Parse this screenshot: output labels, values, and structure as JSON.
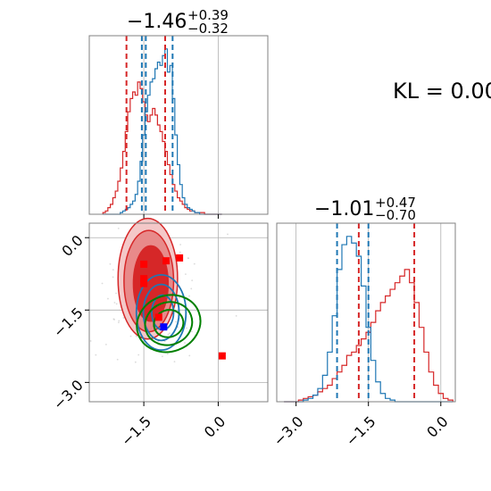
{
  "colors": {
    "red": "#d62728",
    "blue": "#1f77b4",
    "green": "#008000",
    "marker_red": "#ff0000",
    "marker_blue": "#0000ff",
    "grid": "#b0b0b0"
  },
  "annotation": "KL = 0.00",
  "chart_data": [
    {
      "type": "area",
      "panel": "marginal-param-1",
      "title": "−1.46",
      "title_sup": "+0.39",
      "title_sub": "−0.32",
      "xlim": [
        -2.6,
        1.0
      ],
      "x_ticks": [
        -1.5,
        0.0
      ],
      "x_tick_labels": [],
      "y_ticks": [],
      "grid": true,
      "dashed_lines": {
        "red": [
          -1.85,
          -1.07
        ],
        "blue": [
          -1.54,
          -1.46,
          -0.92
        ]
      },
      "hist_bins_x": [
        -2.3,
        -2.25,
        -2.2,
        -2.15,
        -2.1,
        -2.05,
        -2.0,
        -1.95,
        -1.9,
        -1.85,
        -1.8,
        -1.75,
        -1.7,
        -1.65,
        -1.6,
        -1.55,
        -1.5,
        -1.45,
        -1.4,
        -1.35,
        -1.3,
        -1.25,
        -1.2,
        -1.15,
        -1.1,
        -1.05,
        -1.0,
        -0.95,
        -0.9,
        -0.85,
        -0.8,
        -0.75,
        -0.7,
        -0.65,
        -0.6,
        -0.55,
        -0.5,
        -0.45,
        -0.4,
        -0.35,
        -0.3,
        -0.25,
        -0.2,
        -0.15,
        -0.1,
        -0.05,
        0.0,
        0.05
      ],
      "series": [
        {
          "color": "red",
          "values": [
            0.01,
            0.02,
            0.04,
            0.06,
            0.1,
            0.14,
            0.2,
            0.28,
            0.38,
            0.5,
            0.62,
            0.7,
            0.74,
            0.72,
            0.8,
            0.76,
            0.68,
            0.6,
            0.56,
            0.6,
            0.64,
            0.6,
            0.54,
            0.5,
            0.44,
            0.38,
            0.3,
            0.24,
            0.18,
            0.14,
            0.1,
            0.08,
            0.06,
            0.04,
            0.03,
            0.02,
            0.02,
            0.01,
            0.01,
            0.01,
            0.01,
            0.0,
            0.0,
            0.0,
            0.0,
            0.0,
            0.0,
            0.0
          ]
        },
        {
          "color": "blue",
          "values": [
            0.0,
            0.0,
            0.0,
            0.0,
            0.0,
            0.0,
            0.0,
            0.01,
            0.02,
            0.03,
            0.04,
            0.06,
            0.08,
            0.12,
            0.2,
            0.32,
            0.48,
            0.62,
            0.72,
            0.8,
            0.82,
            0.88,
            0.92,
            0.9,
            0.96,
            1.0,
            0.86,
            0.9,
            0.7,
            0.48,
            0.3,
            0.18,
            0.1,
            0.06,
            0.04,
            0.03,
            0.02,
            0.01,
            0.01,
            0.0,
            0.0,
            0.0,
            0.0,
            0.0,
            0.0,
            0.0,
            0.0,
            0.0
          ]
        }
      ]
    },
    {
      "type": "area",
      "panel": "marginal-param-2",
      "title": "−1.01",
      "title_sup": "+0.47",
      "title_sub": "−0.70",
      "xlim": [
        -3.4,
        0.3
      ],
      "x_ticks": [
        -3.0,
        -1.5,
        0.0
      ],
      "x_tick_labels": [
        "−3.0",
        "−1.5",
        "0.0"
      ],
      "grid": true,
      "dashed_lines": {
        "red": [
          -1.7,
          -0.55
        ],
        "blue": [
          -2.15,
          -1.5
        ]
      },
      "hist_bins_x": [
        -3.2,
        -3.1,
        -3.0,
        -2.9,
        -2.8,
        -2.7,
        -2.6,
        -2.5,
        -2.4,
        -2.3,
        -2.2,
        -2.1,
        -2.0,
        -1.9,
        -1.8,
        -1.7,
        -1.6,
        -1.5,
        -1.4,
        -1.3,
        -1.2,
        -1.1,
        -1.0,
        -0.9,
        -0.8,
        -0.7,
        -0.6,
        -0.5,
        -0.4,
        -0.3,
        -0.2,
        -0.1,
        0.0,
        0.1,
        0.2
      ],
      "series": [
        {
          "color": "red",
          "values": [
            0.0,
            0.0,
            0.0,
            0.01,
            0.02,
            0.03,
            0.04,
            0.06,
            0.08,
            0.1,
            0.14,
            0.18,
            0.22,
            0.28,
            0.3,
            0.34,
            0.38,
            0.42,
            0.48,
            0.55,
            0.6,
            0.64,
            0.68,
            0.72,
            0.76,
            0.8,
            0.72,
            0.6,
            0.45,
            0.3,
            0.18,
            0.1,
            0.05,
            0.02,
            0.01
          ]
        },
        {
          "color": "blue",
          "values": [
            0.0,
            0.0,
            0.0,
            0.0,
            0.01,
            0.02,
            0.04,
            0.08,
            0.16,
            0.3,
            0.52,
            0.8,
            0.95,
            1.0,
            0.96,
            0.88,
            0.7,
            0.45,
            0.25,
            0.12,
            0.05,
            0.02,
            0.01,
            0.0,
            0.0,
            0.0,
            0.0,
            0.0,
            0.0,
            0.0,
            0.0,
            0.0,
            0.0,
            0.0,
            0.0
          ]
        }
      ]
    },
    {
      "type": "scatter",
      "panel": "joint",
      "xlim": [
        -2.6,
        1.0
      ],
      "ylim": [
        -3.4,
        0.3
      ],
      "x_ticks": [
        -1.5,
        0.0
      ],
      "x_tick_labels": [
        "−1.5",
        "0.0"
      ],
      "y_ticks": [
        0.0,
        -1.5,
        -3.0
      ],
      "y_tick_labels": [
        "0.0",
        "−1.5",
        "−3.0"
      ],
      "grid": true,
      "red_contours": [
        {
          "cx": -1.42,
          "cy": -0.85,
          "rx": 0.6,
          "ry": 1.25,
          "fill": "#f4c8c8",
          "stroke": "#d62728"
        },
        {
          "cx": -1.4,
          "cy": -0.9,
          "rx": 0.5,
          "ry": 1.05,
          "fill": "#e88a8a",
          "stroke": "#d62728"
        },
        {
          "cx": -1.36,
          "cy": -0.95,
          "rx": 0.35,
          "ry": 0.78,
          "fill": "#d62728",
          "stroke": "#d62728"
        }
      ],
      "blue_contours": [
        {
          "cx": -1.15,
          "cy": -1.55,
          "rx": 0.5,
          "ry": 0.78
        },
        {
          "cx": -1.15,
          "cy": -1.55,
          "rx": 0.36,
          "ry": 0.58
        },
        {
          "cx": -1.12,
          "cy": -1.55,
          "rx": 0.22,
          "ry": 0.36
        }
      ],
      "green_contours": [
        {
          "cx": -1.0,
          "cy": -1.78,
          "rx": 0.65,
          "ry": 0.58
        },
        {
          "cx": -1.0,
          "cy": -1.78,
          "rx": 0.48,
          "ry": 0.44
        },
        {
          "cx": -1.0,
          "cy": -1.78,
          "rx": 0.3,
          "ry": 0.28
        }
      ],
      "red_points": [
        {
          "x": -1.5,
          "y": -0.55
        },
        {
          "x": -1.05,
          "y": -0.48
        },
        {
          "x": -0.78,
          "y": -0.42
        },
        {
          "x": -1.5,
          "y": -0.85
        },
        {
          "x": -1.5,
          "y": -0.95
        },
        {
          "x": -1.2,
          "y": -1.65
        },
        {
          "x": 0.08,
          "y": -2.45
        }
      ],
      "blue_points": [
        {
          "x": -1.1,
          "y": -1.85
        }
      ]
    }
  ]
}
